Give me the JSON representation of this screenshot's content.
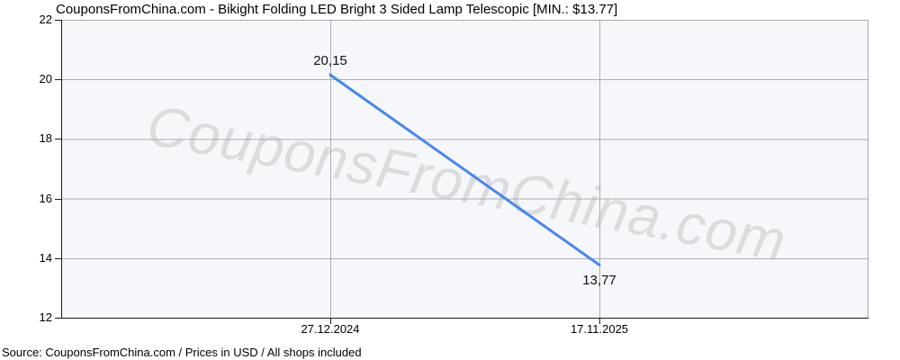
{
  "header": {
    "title": "CouponsFromChina.com - Bikight Folding LED Bright 3 Sided Lamp Telescopic [MIN.: $13.77]"
  },
  "watermark": {
    "text": "CouponsFromChina.com"
  },
  "footer": {
    "text": "Source: CouponsFromChina.com / Prices in USD / All shops included"
  },
  "chart_data": {
    "type": "line",
    "title": "CouponsFromChina.com - Bikight Folding LED Bright 3 Sided Lamp Telescopic [MIN.: $13.77]",
    "categories": [
      "27.12.2024",
      "17.11.2025"
    ],
    "series": [
      {
        "name": "Price (USD)",
        "values": [
          20.15,
          13.77
        ]
      }
    ],
    "point_labels": [
      "20,15",
      "13,77"
    ],
    "ylim": [
      12,
      22
    ],
    "yticks": [
      22,
      20,
      18,
      16,
      14,
      12
    ],
    "grid": true,
    "legend": "none",
    "colors": {
      "line": "#4687ee",
      "plot_background": "#f6f7fb",
      "gridline": "#abaeb4",
      "frame": "#a6a9ad",
      "axis": "#1a1a1a",
      "watermark": "#dcdcdd",
      "text": "#000000"
    }
  }
}
